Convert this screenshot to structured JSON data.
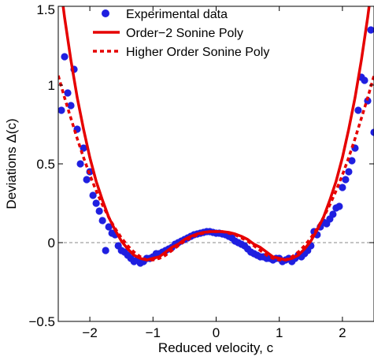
{
  "chart_data": {
    "type": "scatter",
    "xlabel": "Reduced velocity, c",
    "ylabel": "Deviations Δ(c)",
    "xlim": [
      -2.5,
      2.5
    ],
    "ylim": [
      -0.5,
      1.5
    ],
    "xticks": [
      -2,
      -1,
      0,
      1,
      2
    ],
    "yticks": [
      -0.5,
      0,
      0.5,
      1,
      1.5
    ],
    "xtick_labels": [
      "−2",
      "−1",
      "0",
      "1",
      "2"
    ],
    "ytick_labels": [
      "−0.5",
      "0",
      "0.5",
      "1",
      "1.5"
    ],
    "reference_line": {
      "y": 0,
      "style": "dashed",
      "color": "#888888"
    },
    "grid": false,
    "legend_position": "top-center",
    "colors": {
      "points": "#1f1fe0",
      "curves": "#e60000"
    },
    "series": [
      {
        "name": "Experimental data",
        "style": "markers",
        "x": [
          -2.45,
          -2.4,
          -2.35,
          -2.3,
          -2.25,
          -2.2,
          -2.15,
          -2.1,
          -2.05,
          -2.0,
          -1.95,
          -1.9,
          -1.85,
          -1.8,
          -1.75,
          -1.7,
          -1.65,
          -1.6,
          -1.55,
          -1.5,
          -1.45,
          -1.4,
          -1.35,
          -1.3,
          -1.25,
          -1.2,
          -1.15,
          -1.1,
          -1.05,
          -1.0,
          -0.95,
          -0.9,
          -0.85,
          -0.8,
          -0.75,
          -0.7,
          -0.65,
          -0.6,
          -0.55,
          -0.5,
          -0.45,
          -0.4,
          -0.35,
          -0.3,
          -0.25,
          -0.2,
          -0.15,
          -0.1,
          -0.05,
          0.0,
          0.05,
          0.1,
          0.15,
          0.2,
          0.25,
          0.3,
          0.35,
          0.4,
          0.45,
          0.5,
          0.55,
          0.6,
          0.65,
          0.7,
          0.75,
          0.8,
          0.85,
          0.9,
          0.95,
          1.0,
          1.05,
          1.1,
          1.15,
          1.2,
          1.25,
          1.3,
          1.35,
          1.4,
          1.45,
          1.5,
          1.55,
          1.6,
          1.65,
          1.7,
          1.75,
          1.8,
          1.85,
          1.9,
          1.95,
          2.0,
          2.05,
          2.1,
          2.15,
          2.2,
          2.25,
          2.3,
          2.35,
          2.4,
          2.45,
          2.5
        ],
        "y": [
          0.84,
          1.18,
          0.95,
          0.87,
          1.1,
          0.72,
          0.5,
          0.6,
          0.4,
          0.45,
          0.3,
          0.25,
          0.2,
          0.14,
          -0.05,
          0.1,
          0.06,
          0.05,
          -0.02,
          -0.05,
          -0.06,
          -0.08,
          -0.1,
          -0.12,
          -0.11,
          -0.13,
          -0.12,
          -0.1,
          -0.1,
          -0.09,
          -0.07,
          -0.07,
          -0.06,
          -0.05,
          -0.04,
          -0.03,
          -0.01,
          0.0,
          0.01,
          0.02,
          0.03,
          0.04,
          0.05,
          0.055,
          0.06,
          0.065,
          0.07,
          0.07,
          0.065,
          0.06,
          0.06,
          0.055,
          0.05,
          0.04,
          0.03,
          0.01,
          0.0,
          -0.01,
          -0.02,
          -0.04,
          -0.06,
          -0.07,
          -0.08,
          -0.09,
          -0.09,
          -0.1,
          -0.1,
          -0.11,
          -0.1,
          -0.1,
          -0.12,
          -0.11,
          -0.1,
          -0.12,
          -0.1,
          -0.08,
          -0.09,
          -0.07,
          -0.05,
          -0.02,
          0.07,
          0.05,
          0.1,
          0.13,
          0.12,
          0.15,
          0.18,
          0.22,
          0.23,
          0.35,
          0.4,
          0.45,
          0.52,
          0.6,
          0.84,
          1.05,
          1.03,
          0.9,
          1.35,
          0.7
        ]
      },
      {
        "name": "Order−2 Sonine Poly",
        "style": "solid",
        "x": [
          -2.5,
          -2.4,
          -2.3,
          -2.2,
          -2.1,
          -2.0,
          -1.9,
          -1.8,
          -1.7,
          -1.6,
          -1.5,
          -1.4,
          -1.3,
          -1.2,
          -1.1,
          -1.0,
          -0.9,
          -0.8,
          -0.7,
          -0.6,
          -0.5,
          -0.4,
          -0.3,
          -0.2,
          -0.1,
          0.0,
          0.1,
          0.2,
          0.3,
          0.4,
          0.5,
          0.6,
          0.7,
          0.8,
          0.9,
          1.0,
          1.1,
          1.2,
          1.3,
          1.4,
          1.5,
          1.6,
          1.7,
          1.8,
          1.9,
          2.0,
          2.1,
          2.2,
          2.3,
          2.4,
          2.5
        ],
        "y": [
          1.74,
          1.43,
          1.16,
          0.92,
          0.72,
          0.54,
          0.39,
          0.27,
          0.16,
          0.08,
          0.01,
          -0.04,
          -0.08,
          -0.1,
          -0.11,
          -0.1,
          -0.09,
          -0.06,
          -0.03,
          -0.01,
          0.02,
          0.04,
          0.055,
          0.065,
          0.07,
          0.07,
          0.07,
          0.065,
          0.055,
          0.04,
          0.02,
          -0.01,
          -0.03,
          -0.06,
          -0.09,
          -0.1,
          -0.11,
          -0.1,
          -0.08,
          -0.04,
          0.01,
          0.08,
          0.16,
          0.27,
          0.39,
          0.54,
          0.72,
          0.92,
          1.16,
          1.43,
          1.74
        ]
      },
      {
        "name": "Higher Order Sonine Poly",
        "style": "dotted",
        "x": [
          -2.5,
          -2.4,
          -2.3,
          -2.2,
          -2.1,
          -2.0,
          -1.9,
          -1.8,
          -1.7,
          -1.6,
          -1.5,
          -1.4,
          -1.3,
          -1.2,
          -1.1,
          -1.0,
          -0.9,
          -0.8,
          -0.7,
          -0.6,
          -0.5,
          -0.4,
          -0.3,
          -0.2,
          -0.1,
          0.0,
          0.1,
          0.2,
          0.3,
          0.4,
          0.5,
          0.6,
          0.7,
          0.8,
          0.9,
          1.0,
          1.1,
          1.2,
          1.3,
          1.4,
          1.5,
          1.6,
          1.7,
          1.8,
          1.9,
          2.0,
          2.1,
          2.2,
          2.3,
          2.4,
          2.5
        ],
        "y": [
          1.06,
          0.92,
          0.79,
          0.66,
          0.54,
          0.43,
          0.33,
          0.24,
          0.16,
          0.09,
          0.03,
          -0.02,
          -0.06,
          -0.09,
          -0.11,
          -0.11,
          -0.1,
          -0.08,
          -0.05,
          -0.02,
          0.01,
          0.03,
          0.05,
          0.06,
          0.07,
          0.07,
          0.07,
          0.06,
          0.05,
          0.03,
          0.01,
          -0.02,
          -0.05,
          -0.08,
          -0.1,
          -0.11,
          -0.11,
          -0.09,
          -0.06,
          -0.02,
          0.03,
          0.09,
          0.16,
          0.24,
          0.33,
          0.43,
          0.54,
          0.66,
          0.79,
          0.92,
          1.06
        ]
      }
    ]
  }
}
